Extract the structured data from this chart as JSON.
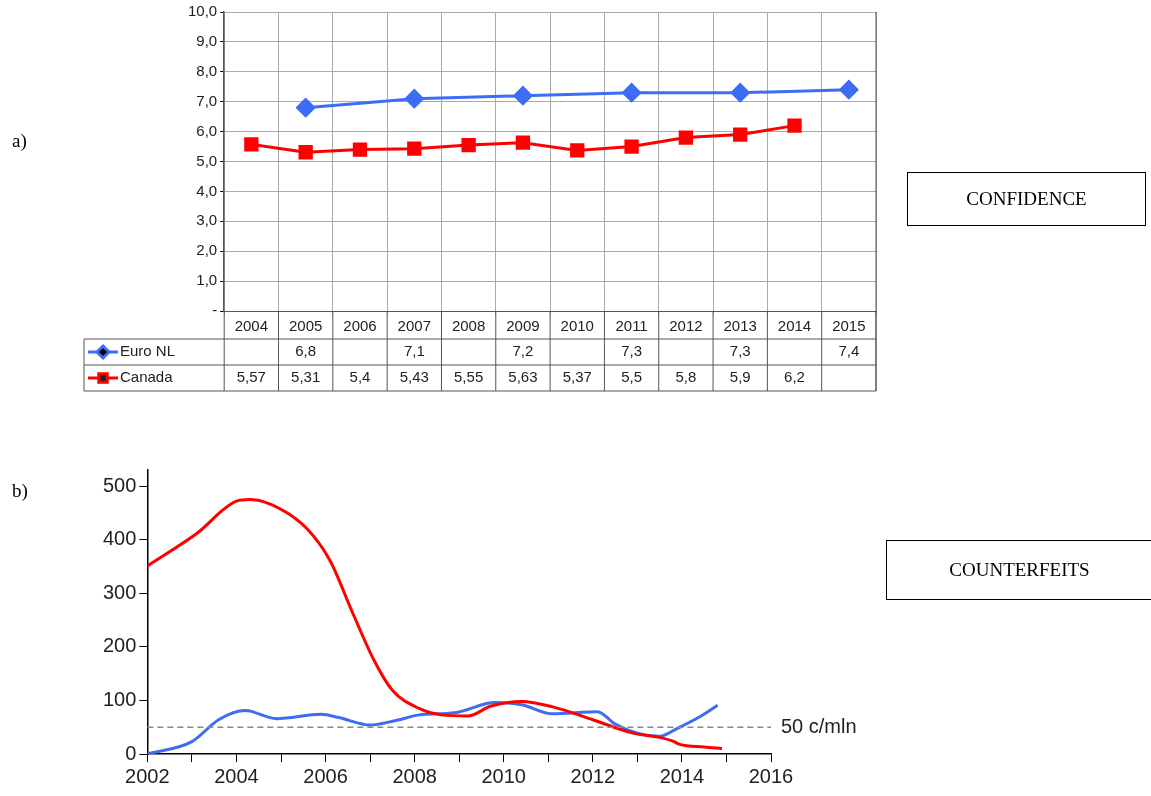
{
  "chart_data": [
    {
      "type": "line",
      "annotations": [
        "a)",
        "CONFIDENCE"
      ],
      "categories": [
        "2004",
        "2005",
        "2006",
        "2007",
        "2008",
        "2009",
        "2010",
        "2011",
        "2012",
        "2013",
        "2014",
        "2015"
      ],
      "series": [
        {
          "name": "Euro NL",
          "color": "#3d6cf5",
          "marker": "diamond",
          "values": [
            null,
            6.8,
            null,
            7.1,
            null,
            7.2,
            null,
            7.3,
            null,
            7.3,
            null,
            7.4
          ],
          "value_labels": [
            null,
            "6,8",
            null,
            "7,1",
            null,
            "7,2",
            null,
            "7,3",
            null,
            "7,3",
            null,
            "7,4"
          ]
        },
        {
          "name": "Canada",
          "color": "#ff0000",
          "marker": "square",
          "values": [
            5.57,
            5.31,
            5.4,
            5.43,
            5.55,
            5.63,
            5.37,
            5.5,
            5.8,
            5.9,
            6.2,
            null
          ],
          "value_labels": [
            "5,57",
            "5,31",
            "5,4",
            "5,43",
            "5,55",
            "5,63",
            "5,37",
            "5,5",
            "5,8",
            "5,9",
            "6,2",
            null
          ]
        }
      ],
      "ylim": [
        0,
        10
      ],
      "yticks": [
        {
          "value": 0,
          "label": "-"
        },
        {
          "value": 1,
          "label": "1,0"
        },
        {
          "value": 2,
          "label": "2,0"
        },
        {
          "value": 3,
          "label": "3,0"
        },
        {
          "value": 4,
          "label": "4,0"
        },
        {
          "value": 5,
          "label": "5,0"
        },
        {
          "value": 6,
          "label": "6,0"
        },
        {
          "value": 7,
          "label": "7,0"
        },
        {
          "value": 8,
          "label": "8,0"
        },
        {
          "value": 9,
          "label": "9,0"
        },
        {
          "value": 10,
          "label": "10,0"
        }
      ],
      "grid": true,
      "legend": "bottom",
      "line_style": "solid"
    },
    {
      "type": "line",
      "annotations": [
        "b)",
        "COUNTERFEITS"
      ],
      "series": [
        {
          "color": "#ff0000",
          "x": [
            2002,
            2003.1,
            2004,
            2004.3,
            2004.9,
            2005.6,
            2006.1,
            2006.6,
            2007.1,
            2007.5,
            2008.1,
            2008.6,
            2009.2,
            2009.7,
            2010.4,
            2011.1,
            2012,
            2012.9,
            2013.5,
            2013.8,
            2013.95,
            2014.5,
            2014.9
          ],
          "values": [
            351,
            411,
            472,
            475,
            461,
            419,
            361,
            265,
            173,
            119,
            85,
            73,
            71,
            89,
            98,
            88,
            64,
            39,
            31,
            24,
            18,
            13,
            10
          ]
        },
        {
          "color": "#3d6cf5",
          "x": [
            2002,
            2003,
            2003.6,
            2004.2,
            2004.9,
            2005.9,
            2006.3,
            2007,
            2007.6,
            2008.1,
            2008.9,
            2009.8,
            2010.4,
            2011.1,
            2012.1,
            2012.5,
            2013,
            2013.5,
            2013.9,
            2014.45,
            2014.8
          ],
          "values": [
            0,
            23,
            64,
            81,
            66,
            74,
            68,
            54,
            63,
            73,
            77,
            96,
            92,
            75,
            79,
            56,
            39,
            33,
            48,
            72,
            91
          ]
        }
      ],
      "xlim": [
        2002,
        2016
      ],
      "xticks": [
        2002,
        {
          "value": 2003,
          "label": null
        },
        2004,
        {
          "value": 2005,
          "label": null
        },
        2006,
        {
          "value": 2007,
          "label": null
        },
        2008,
        {
          "value": 2009,
          "label": null
        },
        2010,
        {
          "value": 2011,
          "label": null
        },
        2012,
        {
          "value": 2013,
          "label": null
        },
        2014,
        {
          "value": 2015,
          "label": null
        },
        2016
      ],
      "ylim": [
        0,
        530
      ],
      "yticks": [
        0,
        100,
        200,
        300,
        400,
        500
      ],
      "ref_lines": [
        {
          "axis": "y",
          "value": 50,
          "label": "50 c/mln",
          "color": "#888888",
          "line_style": "dashed"
        }
      ],
      "marker": "none",
      "grid": false,
      "line_style": "solid"
    }
  ]
}
